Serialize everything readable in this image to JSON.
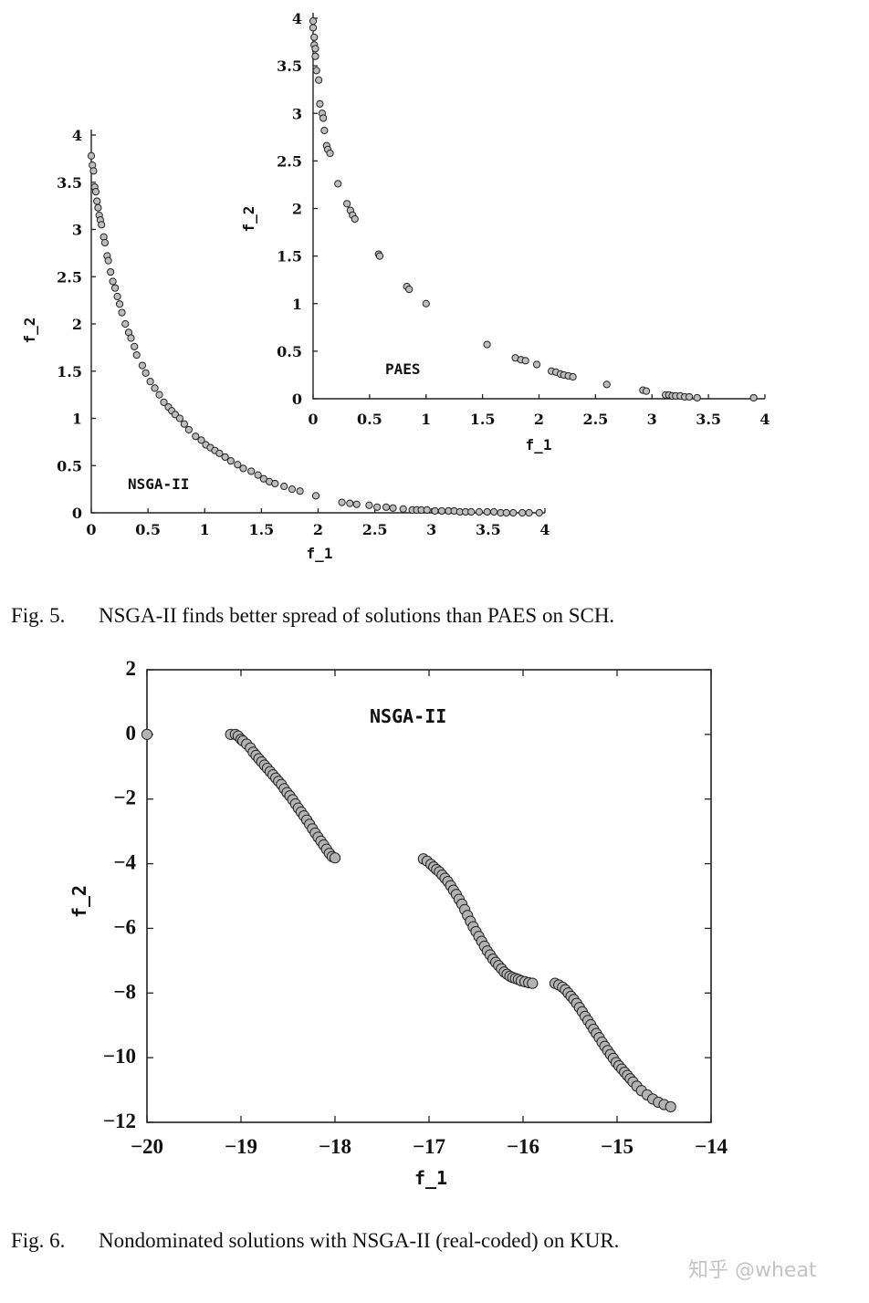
{
  "figure5": {
    "caption_number": "Fig. 5.",
    "caption_text": "NSGA-II finds better spread of solutions than PAES on SCH."
  },
  "figure6": {
    "caption_number": "Fig. 6.",
    "caption_text": "Nondominated solutions with NSGA-II (real-coded) on KUR."
  },
  "watermark": "知乎 @wheat",
  "chart_data": [
    {
      "type": "scatter",
      "id": "nsga_sch",
      "annotation": "NSGA-II",
      "xlabel": "f_1",
      "ylabel": "f_2",
      "xlim": [
        0,
        4
      ],
      "ylim": [
        0,
        4
      ],
      "xticks": [
        "0",
        "0.5",
        "1",
        "1.5",
        "2",
        "2.5",
        "3",
        "3.5",
        "4"
      ],
      "yticks": [
        "0",
        "0.5",
        "1",
        "1.5",
        "2",
        "2.5",
        "3",
        "3.5",
        "4"
      ],
      "marker_color": "#bdbdbd",
      "series": [
        {
          "x": [
            0.0,
            0.01,
            0.02,
            0.03,
            0.04,
            0.05,
            0.06,
            0.07,
            0.08,
            0.09,
            0.11,
            0.12,
            0.14,
            0.15,
            0.17,
            0.19,
            0.21,
            0.23,
            0.25,
            0.27,
            0.3,
            0.33,
            0.35,
            0.38,
            0.4,
            0.45,
            0.48,
            0.52,
            0.56,
            0.6,
            0.64,
            0.68,
            0.71,
            0.74,
            0.78,
            0.82,
            0.86,
            0.92,
            0.97,
            1.01,
            1.05,
            1.09,
            1.13,
            1.18,
            1.23,
            1.29,
            1.34,
            1.41,
            1.47,
            1.52,
            1.57,
            1.62,
            1.7,
            1.77,
            1.84,
            1.98,
            2.21,
            2.28,
            2.34,
            2.45,
            2.52,
            2.6,
            2.66,
            2.75,
            2.83,
            2.87,
            2.91,
            2.96,
            3.03,
            3.09,
            3.15,
            3.2,
            3.25,
            3.3,
            3.35,
            3.42,
            3.49,
            3.55,
            3.61,
            3.66,
            3.72,
            3.8,
            3.86,
            3.95
          ],
          "y": [
            3.78,
            3.68,
            3.62,
            3.45,
            3.4,
            3.3,
            3.23,
            3.15,
            3.1,
            3.05,
            2.92,
            2.86,
            2.72,
            2.67,
            2.55,
            2.45,
            2.38,
            2.29,
            2.21,
            2.12,
            2.0,
            1.91,
            1.85,
            1.76,
            1.67,
            1.56,
            1.48,
            1.39,
            1.32,
            1.25,
            1.17,
            1.12,
            1.08,
            1.04,
            1.0,
            0.94,
            0.88,
            0.81,
            0.77,
            0.72,
            0.69,
            0.66,
            0.63,
            0.59,
            0.55,
            0.51,
            0.47,
            0.44,
            0.4,
            0.36,
            0.33,
            0.31,
            0.28,
            0.25,
            0.23,
            0.18,
            0.11,
            0.1,
            0.09,
            0.08,
            0.06,
            0.06,
            0.05,
            0.04,
            0.03,
            0.03,
            0.03,
            0.03,
            0.02,
            0.02,
            0.02,
            0.02,
            0.01,
            0.01,
            0.01,
            0.01,
            0.01,
            0.01,
            0.0,
            0.0,
            0.0,
            0.0,
            0.0,
            0.0
          ]
        }
      ]
    },
    {
      "type": "scatter",
      "id": "paes_sch",
      "annotation": "PAES",
      "xlabel": "f_1",
      "ylabel": "f_2",
      "xlim": [
        0,
        4
      ],
      "ylim": [
        0,
        4
      ],
      "xticks": [
        "0",
        "0.5",
        "1",
        "1.5",
        "2",
        "2.5",
        "3",
        "3.5",
        "4"
      ],
      "yticks": [
        "0",
        "0.5",
        "1",
        "1.5",
        "2",
        "2.5",
        "3",
        "3.5",
        "4"
      ],
      "marker_color": "#bdbdbd",
      "series": [
        {
          "x": [
            0.0,
            0.0,
            0.01,
            0.01,
            0.02,
            0.02,
            0.03,
            0.05,
            0.06,
            0.08,
            0.09,
            0.1,
            0.12,
            0.13,
            0.15,
            0.22,
            0.3,
            0.33,
            0.35,
            0.37,
            0.58,
            0.59,
            0.83,
            0.85,
            1.0,
            1.54,
            1.79,
            1.84,
            1.88,
            1.98,
            2.11,
            2.15,
            2.19,
            2.22,
            2.26,
            2.3,
            2.6,
            2.92,
            2.95,
            3.12,
            3.15,
            3.18,
            3.21,
            3.25,
            3.29,
            3.33,
            3.4,
            3.9
          ],
          "y": [
            3.97,
            3.9,
            3.8,
            3.72,
            3.68,
            3.6,
            3.45,
            3.35,
            3.1,
            3.0,
            2.95,
            2.82,
            2.66,
            2.62,
            2.58,
            2.26,
            2.05,
            1.98,
            1.93,
            1.89,
            1.52,
            1.5,
            1.18,
            1.15,
            1.0,
            0.57,
            0.43,
            0.41,
            0.4,
            0.36,
            0.29,
            0.28,
            0.26,
            0.25,
            0.24,
            0.23,
            0.15,
            0.09,
            0.08,
            0.04,
            0.04,
            0.03,
            0.03,
            0.03,
            0.02,
            0.02,
            0.01,
            0.01
          ]
        }
      ]
    },
    {
      "type": "scatter",
      "id": "nsga_kur",
      "annotation": "NSGA-II",
      "xlabel": "f_1",
      "ylabel": "f_2",
      "xlim": [
        -20,
        -14
      ],
      "ylim": [
        -12,
        2
      ],
      "xticks": [
        "−20",
        "−19",
        "−18",
        "−17",
        "−16",
        "−15",
        "−14"
      ],
      "yticks": [
        "−12",
        "−10",
        "−8",
        "−6",
        "−4",
        "−2",
        "0",
        "2"
      ],
      "marker_color": "#b3b3b3",
      "series": [
        {
          "x": [
            -20.0,
            -19.11,
            -19.06,
            -19.03,
            -19.0,
            -18.98,
            -18.94,
            -18.9,
            -18.87,
            -18.84,
            -18.81,
            -18.78,
            -18.75,
            -18.72,
            -18.69,
            -18.66,
            -18.63,
            -18.6,
            -18.57,
            -18.54,
            -18.51,
            -18.48,
            -18.45,
            -18.42,
            -18.39,
            -18.36,
            -18.33,
            -18.3,
            -18.27,
            -18.24,
            -18.21,
            -18.18,
            -18.15,
            -18.12,
            -18.09,
            -18.06,
            -18.03,
            -18.0,
            -17.06,
            -17.02,
            -16.98,
            -16.95,
            -16.92,
            -16.89,
            -16.86,
            -16.83,
            -16.8,
            -16.77,
            -16.74,
            -16.71,
            -16.68,
            -16.65,
            -16.62,
            -16.59,
            -16.56,
            -16.53,
            -16.5,
            -16.47,
            -16.44,
            -16.41,
            -16.38,
            -16.35,
            -16.32,
            -16.29,
            -16.26,
            -16.23,
            -16.2,
            -16.17,
            -16.14,
            -16.11,
            -16.08,
            -16.05,
            -16.02,
            -15.98,
            -15.94,
            -15.9,
            -15.66,
            -15.62,
            -15.58,
            -15.55,
            -15.52,
            -15.49,
            -15.46,
            -15.43,
            -15.4,
            -15.37,
            -15.34,
            -15.31,
            -15.28,
            -15.25,
            -15.22,
            -15.19,
            -15.16,
            -15.13,
            -15.1,
            -15.07,
            -15.04,
            -15.01,
            -14.98,
            -14.95,
            -14.92,
            -14.89,
            -14.86,
            -14.83,
            -14.79,
            -14.74,
            -14.68,
            -14.62,
            -14.56,
            -14.5,
            -14.43
          ],
          "y": [
            0.0,
            0.0,
            0.0,
            -0.05,
            -0.15,
            -0.2,
            -0.3,
            -0.42,
            -0.55,
            -0.65,
            -0.75,
            -0.85,
            -0.95,
            -1.05,
            -1.15,
            -1.25,
            -1.35,
            -1.45,
            -1.55,
            -1.68,
            -1.8,
            -1.9,
            -2.02,
            -2.15,
            -2.28,
            -2.4,
            -2.52,
            -2.65,
            -2.78,
            -2.92,
            -3.05,
            -3.18,
            -3.3,
            -3.42,
            -3.55,
            -3.68,
            -3.78,
            -3.82,
            -3.85,
            -3.92,
            -4.02,
            -4.1,
            -4.18,
            -4.25,
            -4.35,
            -4.45,
            -4.55,
            -4.68,
            -4.82,
            -4.95,
            -5.1,
            -5.25,
            -5.42,
            -5.6,
            -5.78,
            -5.95,
            -6.1,
            -6.25,
            -6.4,
            -6.55,
            -6.7,
            -6.82,
            -6.95,
            -7.05,
            -7.15,
            -7.25,
            -7.35,
            -7.42,
            -7.48,
            -7.52,
            -7.55,
            -7.58,
            -7.62,
            -7.65,
            -7.68,
            -7.7,
            -7.7,
            -7.75,
            -7.82,
            -7.9,
            -8.0,
            -8.1,
            -8.2,
            -8.32,
            -8.45,
            -8.58,
            -8.72,
            -8.85,
            -8.98,
            -9.12,
            -9.25,
            -9.38,
            -9.52,
            -9.65,
            -9.78,
            -9.9,
            -10.02,
            -10.15,
            -10.25,
            -10.35,
            -10.45,
            -10.55,
            -10.65,
            -10.75,
            -10.88,
            -11.02,
            -11.15,
            -11.28,
            -11.38,
            -11.45,
            -11.52
          ]
        }
      ]
    }
  ]
}
